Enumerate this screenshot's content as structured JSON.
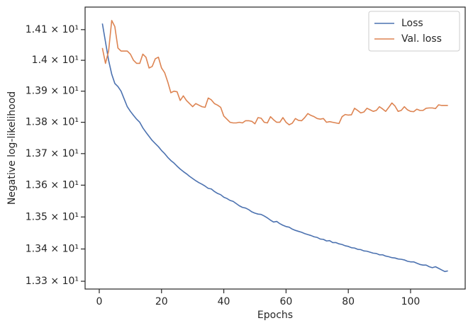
{
  "chart_data": {
    "type": "line",
    "xlabel": "Epochs",
    "ylabel": "Negative log-likelihood",
    "x": [
      1,
      2,
      3,
      4,
      5,
      6,
      7,
      8,
      9,
      10,
      11,
      12,
      13,
      14,
      15,
      16,
      17,
      18,
      19,
      20,
      21,
      22,
      23,
      24,
      25,
      26,
      27,
      28,
      29,
      30,
      31,
      32,
      33,
      34,
      35,
      36,
      37,
      38,
      39,
      40,
      41,
      42,
      43,
      44,
      45,
      46,
      47,
      48,
      49,
      50,
      51,
      52,
      53,
      54,
      55,
      56,
      57,
      58,
      59,
      60,
      61,
      62,
      63,
      64,
      65,
      66,
      67,
      68,
      69,
      70,
      71,
      72,
      73,
      74,
      75,
      76,
      77,
      78,
      79,
      80,
      81,
      82,
      83,
      84,
      85,
      86,
      87,
      88,
      89,
      90,
      91,
      92,
      93,
      94,
      95,
      96,
      97,
      98,
      99,
      100,
      101,
      102,
      103,
      104,
      105,
      106,
      107,
      108,
      109,
      110,
      111,
      112
    ],
    "series": [
      {
        "name": "Loss",
        "color": "#4c72b0",
        "values": [
          14.12,
          14.06,
          14.0,
          13.955,
          13.925,
          13.915,
          13.9,
          13.875,
          13.85,
          13.835,
          13.822,
          13.81,
          13.8,
          13.782,
          13.768,
          13.755,
          13.742,
          13.732,
          13.722,
          13.71,
          13.7,
          13.688,
          13.678,
          13.67,
          13.66,
          13.651,
          13.643,
          13.636,
          13.628,
          13.621,
          13.614,
          13.608,
          13.603,
          13.597,
          13.59,
          13.588,
          13.58,
          13.574,
          13.57,
          13.562,
          13.558,
          13.552,
          13.549,
          13.542,
          13.535,
          13.53,
          13.528,
          13.523,
          13.516,
          13.512,
          13.509,
          13.508,
          13.503,
          13.497,
          13.49,
          13.484,
          13.486,
          13.479,
          13.474,
          13.47,
          13.468,
          13.462,
          13.458,
          13.455,
          13.452,
          13.448,
          13.445,
          13.442,
          13.438,
          13.436,
          13.431,
          13.43,
          13.425,
          13.426,
          13.42,
          13.42,
          13.416,
          13.414,
          13.41,
          13.408,
          13.404,
          13.403,
          13.399,
          13.398,
          13.394,
          13.393,
          13.39,
          13.387,
          13.386,
          13.382,
          13.382,
          13.378,
          13.376,
          13.373,
          13.372,
          13.369,
          13.368,
          13.366,
          13.362,
          13.36,
          13.36,
          13.356,
          13.352,
          13.35,
          13.35,
          13.345,
          13.342,
          13.345,
          13.34,
          13.335,
          13.33,
          13.332
        ]
      },
      {
        "name": "Val. loss",
        "color": "#dd8452",
        "values": [
          14.04,
          13.99,
          14.03,
          14.13,
          14.11,
          14.04,
          14.03,
          14.03,
          14.03,
          14.02,
          14.0,
          13.99,
          13.99,
          14.02,
          14.01,
          13.975,
          13.98,
          14.005,
          14.01,
          13.975,
          13.96,
          13.93,
          13.895,
          13.9,
          13.898,
          13.87,
          13.885,
          13.87,
          13.86,
          13.85,
          13.86,
          13.855,
          13.85,
          13.848,
          13.878,
          13.872,
          13.86,
          13.855,
          13.848,
          13.82,
          13.81,
          13.8,
          13.798,
          13.798,
          13.8,
          13.798,
          13.805,
          13.805,
          13.803,
          13.795,
          13.815,
          13.813,
          13.8,
          13.798,
          13.818,
          13.808,
          13.8,
          13.8,
          13.815,
          13.8,
          13.792,
          13.797,
          13.812,
          13.806,
          13.805,
          13.815,
          13.828,
          13.822,
          13.818,
          13.812,
          13.81,
          13.812,
          13.8,
          13.802,
          13.8,
          13.798,
          13.796,
          13.818,
          13.825,
          13.823,
          13.824,
          13.845,
          13.838,
          13.83,
          13.833,
          13.845,
          13.84,
          13.835,
          13.838,
          13.85,
          13.843,
          13.835,
          13.848,
          13.862,
          13.852,
          13.835,
          13.838,
          13.85,
          13.84,
          13.835,
          13.834,
          13.842,
          13.838,
          13.838,
          13.845,
          13.846,
          13.846,
          13.844,
          13.856,
          13.854,
          13.854,
          13.854
        ]
      }
    ],
    "xlim": [
      -4.55,
      117.55
    ],
    "xticks": [
      0,
      20,
      40,
      60,
      80,
      100
    ],
    "ylim": [
      13.276,
      14.174
    ],
    "yscale": "log",
    "yticks": [
      {
        "value": 13.3,
        "label": "1.33 × 10¹"
      },
      {
        "value": 13.4,
        "label": "1.34 × 10¹"
      },
      {
        "value": 13.5,
        "label": "1.35 × 10¹"
      },
      {
        "value": 13.6,
        "label": "1.36 × 10¹"
      },
      {
        "value": 13.7,
        "label": "1.37 × 10¹"
      },
      {
        "value": 13.8,
        "label": "1.38 × 10¹"
      },
      {
        "value": 13.9,
        "label": "1.39 × 10¹"
      },
      {
        "value": 14.0,
        "label": "1.4 × 10¹"
      },
      {
        "value": 14.1,
        "label": "1.41 × 10¹"
      }
    ],
    "grid": false,
    "legend": "upper right"
  }
}
